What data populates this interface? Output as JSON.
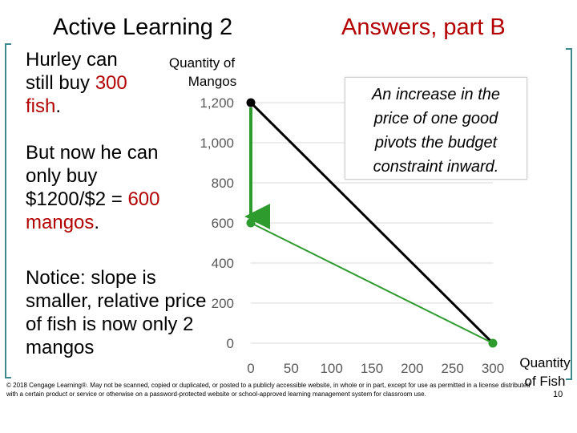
{
  "slide": {
    "title_left": "Active Learning 2",
    "title_right": "Answers, part B",
    "para1": {
      "pre": "Hurley can still buy ",
      "hl": "300 fish",
      "post": "."
    },
    "para2": {
      "pre": "But now he can only buy $1200/$2 = ",
      "hl": "600 mangos",
      "post": "."
    },
    "para3": "Notice: slope is smaller, relative price of fish is now only 2 mangos",
    "callout": "An increase in the price of one good pivots the budget constraint inward.",
    "footer": "© 2018 Cengage Learning®. May not be scanned, copied or duplicated, or posted to a publicly accessible website, in whole or in part, except for use as permitted in a license distributed with a certain product or service or otherwise on a password-protected website or school-approved learning management system for classroom use.",
    "page_number": "10"
  },
  "chart_data": {
    "type": "line",
    "ylabel": "Quantity of Mangos",
    "xlabel": "Quantity of Fish",
    "x_ticks": [
      0,
      50,
      100,
      150,
      200,
      250,
      300
    ],
    "y_ticks": [
      0,
      200,
      400,
      600,
      800,
      1000,
      1200
    ],
    "y_tick_labels": [
      "0",
      "200",
      "400",
      "600",
      "800",
      "1,000",
      "1,200"
    ],
    "xlim": [
      0,
      300
    ],
    "ylim": [
      0,
      1200
    ],
    "grid": "horizontal",
    "series": [
      {
        "points": [
          [
            0,
            1200
          ],
          [
            300,
            0
          ]
        ],
        "color": "#000000"
      },
      {
        "points": [
          [
            0,
            600
          ],
          [
            300,
            0
          ]
        ],
        "color": "#2e9b2e"
      }
    ],
    "arrow": {
      "from": [
        0,
        1200
      ],
      "to": [
        0,
        600
      ],
      "color": "#2e9b2e"
    },
    "markers": [
      {
        "x": 0,
        "y": 1200,
        "color": "#000000"
      },
      {
        "x": 0,
        "y": 600,
        "color": "#2e9b2e"
      },
      {
        "x": 300,
        "y": 0,
        "color": "#2e9b2e"
      }
    ]
  }
}
